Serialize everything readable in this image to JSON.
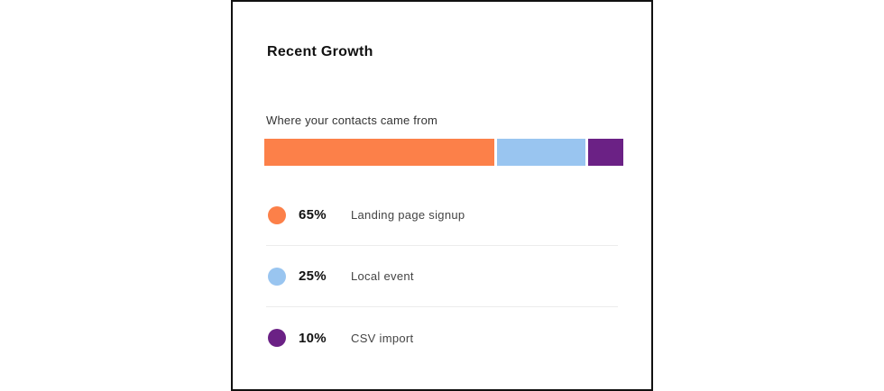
{
  "card": {
    "title": "Recent Growth",
    "subtitle": "Where your contacts came from"
  },
  "legend": [
    {
      "percent": "65%",
      "label": "Landing page signup",
      "color": "#fc8049"
    },
    {
      "percent": "25%",
      "label": "Local event",
      "color": "#99c5f0"
    },
    {
      "percent": "10%",
      "label": "CSV import",
      "color": "#6b2185"
    }
  ],
  "chart_data": {
    "type": "bar",
    "orientation": "horizontal-stacked-100",
    "title": "Recent Growth",
    "subtitle": "Where your contacts came from",
    "categories": [
      "Landing page signup",
      "Local event",
      "CSV import"
    ],
    "values": [
      65,
      25,
      10
    ],
    "unit": "%",
    "colors": [
      "#fc8049",
      "#99c5f0",
      "#6b2185"
    ],
    "legend_position": "below",
    "grid": false
  }
}
